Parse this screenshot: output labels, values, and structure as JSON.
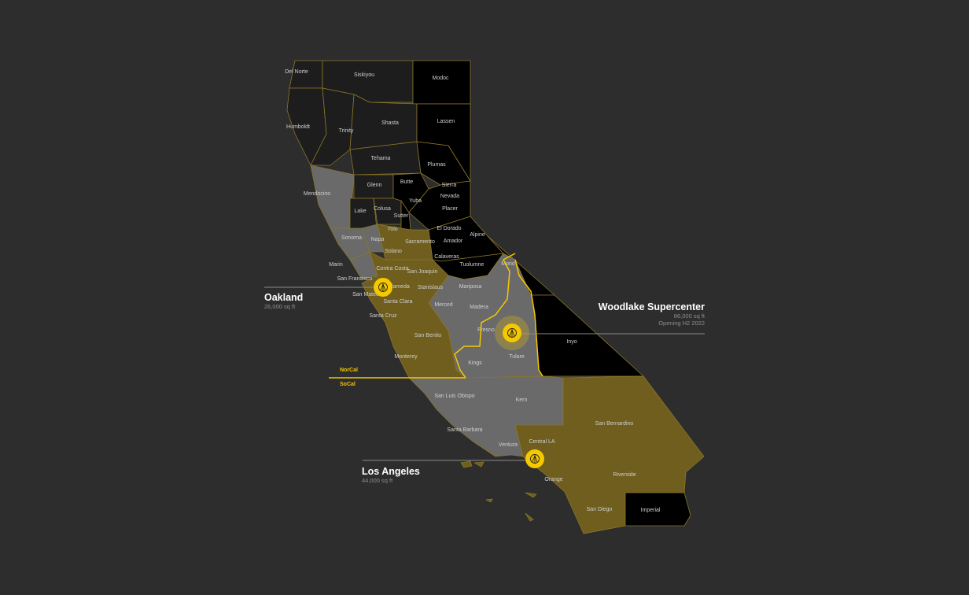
{
  "colors": {
    "background": "#2d2d2d",
    "accent": "#f5c800",
    "olive": "#6f5e1d",
    "gray": "#6a6a6a",
    "dark": "#1d1d1d",
    "black": "#000000"
  },
  "regions": {
    "north": "NorCal",
    "south": "SoCal"
  },
  "locations": [
    {
      "name": "Oakland",
      "size": "26,000 sq ft",
      "icon": "store-marker-icon"
    },
    {
      "name": "Woodlake Supercenter",
      "size": "86,000 sq ft",
      "note": "Opening H2 2022",
      "icon": "store-marker-icon"
    },
    {
      "name": "Los Angeles",
      "size": "44,000 sq ft",
      "icon": "store-marker-icon"
    }
  ],
  "counties": [
    "Del Norte",
    "Siskiyou",
    "Modoc",
    "Humboldt",
    "Trinity",
    "Shasta",
    "Lassen",
    "Tehama",
    "Plumas",
    "Mendocino",
    "Glenn",
    "Butte",
    "Sierra",
    "Nevada",
    "Lake",
    "Colusa",
    "Sutter",
    "Yuba",
    "Placer",
    "Yolo",
    "Sonoma",
    "Napa",
    "El Dorado",
    "Alpine",
    "Sacramento",
    "Amador",
    "Solano",
    "Calaveras",
    "Marin",
    "Contra Costa",
    "San Joaquin",
    "Mono",
    "Tuolumne",
    "San Francisco",
    "Alameda",
    "Stanislaus",
    "Mariposa",
    "San Mateo",
    "Santa Clara",
    "Merced",
    "Madera",
    "Santa Cruz",
    "Fresno",
    "Inyo",
    "San Benito",
    "Tulare",
    "Kings",
    "Monterey",
    "Kern",
    "San Luis Obispo",
    "San Bernardino",
    "Santa Barbara",
    "Central LA",
    "Ventura",
    "Riverside",
    "Orange",
    "San Diego",
    "Imperial"
  ]
}
